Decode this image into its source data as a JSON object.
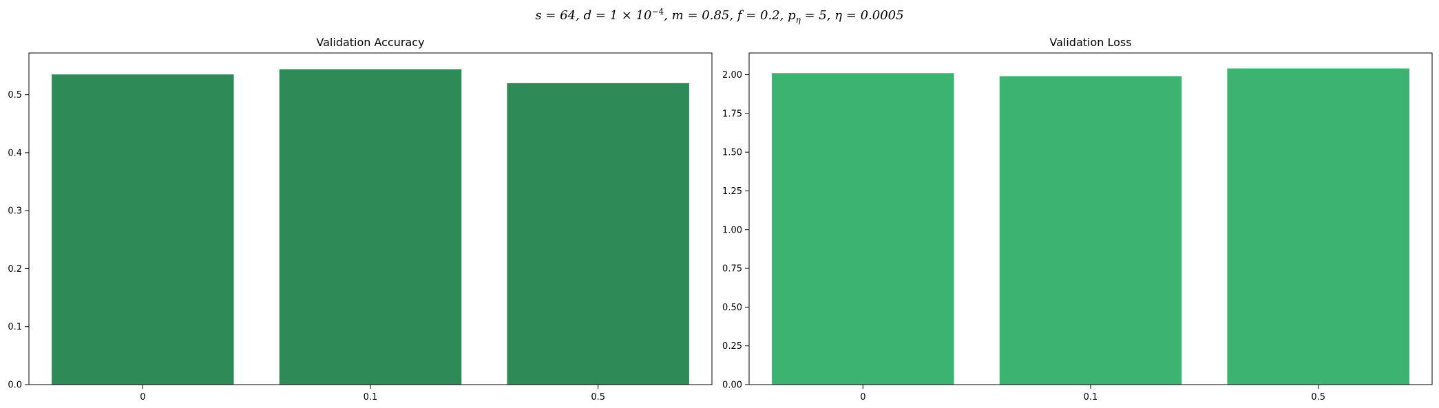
{
  "figure": {
    "suptitle": "s = 64, d = 1 × 10⁻⁴, m = 0.85, f = 0.2, pη = 5, η = 0.0005",
    "suptitle_parts": {
      "s": "s = 64,",
      "d": "d = 1 × 10",
      "d_exp": "−4",
      "d_tail": ",",
      "m": "m = 0.85,",
      "f": "f = 0.2,",
      "p": "p",
      "p_sub": "η",
      "p_tail": " = 5,",
      "eta": "η = 0.0005"
    }
  },
  "chart_data": [
    {
      "type": "bar",
      "title": "Validation Accuracy",
      "xlabel": "",
      "ylabel": "",
      "categories": [
        "0",
        "0.1",
        "0.5"
      ],
      "values": [
        0.535,
        0.544,
        0.52
      ],
      "ylim": [
        0,
        0.572
      ],
      "yticks": [
        0.0,
        0.1,
        0.2,
        0.3,
        0.4,
        0.5
      ],
      "ytick_labels": [
        "0.0",
        "0.1",
        "0.2",
        "0.3",
        "0.4",
        "0.5"
      ],
      "color": "#2e8b57",
      "grid": false,
      "legend": "none"
    },
    {
      "type": "bar",
      "title": "Validation Loss",
      "xlabel": "",
      "ylabel": "",
      "categories": [
        "0",
        "0.1",
        "0.5"
      ],
      "values": [
        2.01,
        1.99,
        2.04
      ],
      "ylim": [
        0,
        2.14
      ],
      "yticks": [
        0.0,
        0.25,
        0.5,
        0.75,
        1.0,
        1.25,
        1.5,
        1.75,
        2.0
      ],
      "ytick_labels": [
        "0.00",
        "0.25",
        "0.50",
        "0.75",
        "1.00",
        "1.25",
        "1.50",
        "1.75",
        "2.00"
      ],
      "color": "#3cb371",
      "grid": false,
      "legend": "none"
    }
  ]
}
